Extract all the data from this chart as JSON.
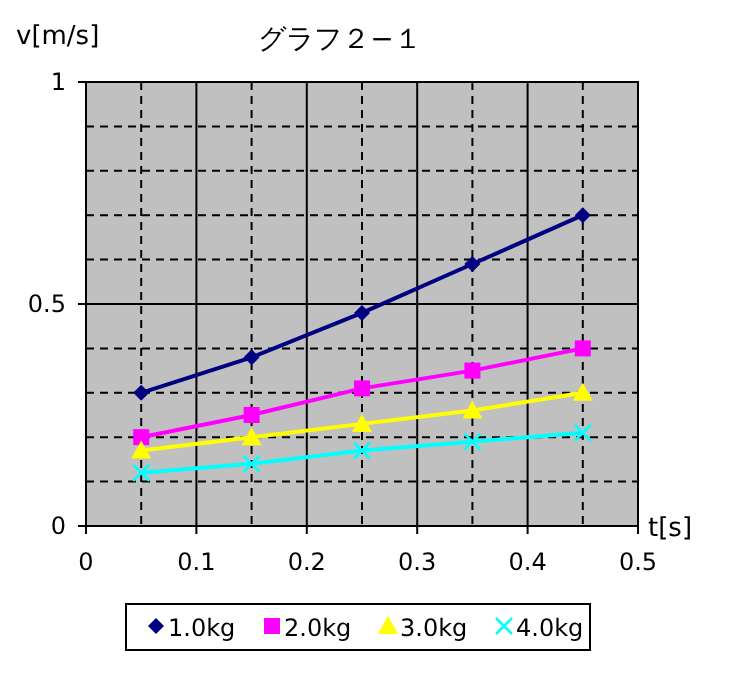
{
  "chart_data": {
    "type": "line",
    "title": "グラフ２−１",
    "xlabel": "t[s]",
    "ylabel": "v[m/s]",
    "x": [
      0.05,
      0.15,
      0.25,
      0.35,
      0.45
    ],
    "xlim": [
      0,
      0.5
    ],
    "xticks": [
      0,
      {
        "value": 0.05,
        "label": null
      },
      0.1,
      {
        "value": 0.15,
        "label": null
      },
      0.2,
      {
        "value": 0.25,
        "label": null
      },
      0.3,
      {
        "value": 0.35,
        "label": null
      },
      0.4,
      {
        "value": 0.45,
        "label": null
      },
      0.5
    ],
    "ylim": [
      0,
      1
    ],
    "yticks": [
      0,
      {
        "value": 0.1,
        "label": null
      },
      {
        "value": 0.2,
        "label": null
      },
      {
        "value": 0.3,
        "label": null
      },
      {
        "value": 0.4,
        "label": null
      },
      0.5,
      {
        "value": 0.6,
        "label": null
      },
      {
        "value": 0.7,
        "label": null
      },
      {
        "value": 0.8,
        "label": null
      },
      {
        "value": 0.9,
        "label": null
      },
      1
    ],
    "grid": true,
    "legend": "bottom",
    "series": [
      {
        "name": "1.0kg",
        "color": "#000080",
        "marker": "diamond",
        "values": [
          0.3,
          0.38,
          0.48,
          0.59,
          0.7
        ]
      },
      {
        "name": "2.0kg",
        "color": "#ff00ff",
        "marker": "square",
        "values": [
          0.2,
          0.25,
          0.31,
          0.35,
          0.4
        ]
      },
      {
        "name": "3.0kg",
        "color": "#ffff00",
        "marker": "triangle",
        "values": [
          0.17,
          0.2,
          0.23,
          0.26,
          0.3
        ]
      },
      {
        "name": "4.0kg",
        "color": "#00ffff",
        "marker": "cross",
        "values": [
          0.12,
          0.14,
          0.17,
          0.19,
          0.21
        ]
      }
    ]
  }
}
